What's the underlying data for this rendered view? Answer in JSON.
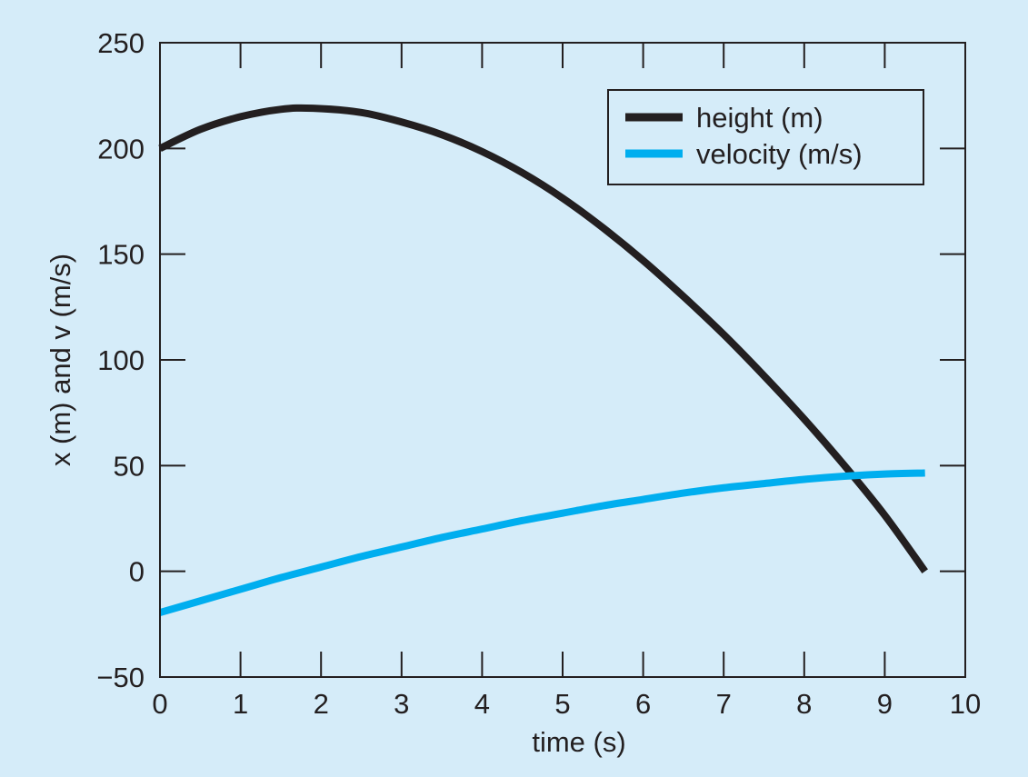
{
  "chart_data": {
    "type": "line",
    "title": "",
    "xlabel": "time (s)",
    "ylabel": "x (m) and v (m/s)",
    "xlim": [
      0,
      10
    ],
    "ylim": [
      -50,
      250
    ],
    "xticks": [
      0,
      1,
      2,
      3,
      4,
      5,
      6,
      7,
      8,
      9,
      10
    ],
    "yticks": [
      -50,
      0,
      50,
      100,
      150,
      200,
      250
    ],
    "xtick_labels": [
      "0",
      "1",
      "2",
      "3",
      "4",
      "5",
      "6",
      "7",
      "8",
      "9",
      "10"
    ],
    "ytick_labels": [
      "−50",
      "0",
      "50",
      "100",
      "150",
      "200",
      "250"
    ],
    "grid": false,
    "legend_position": "top-right",
    "background_color": "#d5ecf9",
    "series": [
      {
        "name": "height (m)",
        "color": "#231f20",
        "x": [
          0,
          0.5,
          1,
          1.5,
          1.9,
          2.5,
          3,
          3.5,
          4,
          4.5,
          5,
          5.5,
          6,
          6.5,
          7,
          7.5,
          8,
          8.5,
          9,
          9.5
        ],
        "y": [
          200,
          209,
          215,
          218.5,
          219,
          217,
          212.5,
          206.5,
          198.5,
          188.5,
          176.5,
          162.5,
          147,
          130,
          112,
          92.5,
          72,
          50,
          26.5,
          0
        ]
      },
      {
        "name": "velocity (m/s)",
        "color": "#00aeef",
        "x": [
          0,
          0.5,
          1,
          1.5,
          2,
          2.5,
          3,
          3.5,
          4,
          4.5,
          5,
          5.5,
          6,
          6.5,
          7,
          7.5,
          8,
          8.5,
          9,
          9.5
        ],
        "y": [
          -19.5,
          -14,
          -8.5,
          -3,
          2,
          7,
          11.5,
          16,
          20,
          24,
          27.5,
          31,
          34,
          37,
          39.5,
          41.5,
          43.5,
          45,
          46,
          46.5
        ]
      }
    ]
  }
}
